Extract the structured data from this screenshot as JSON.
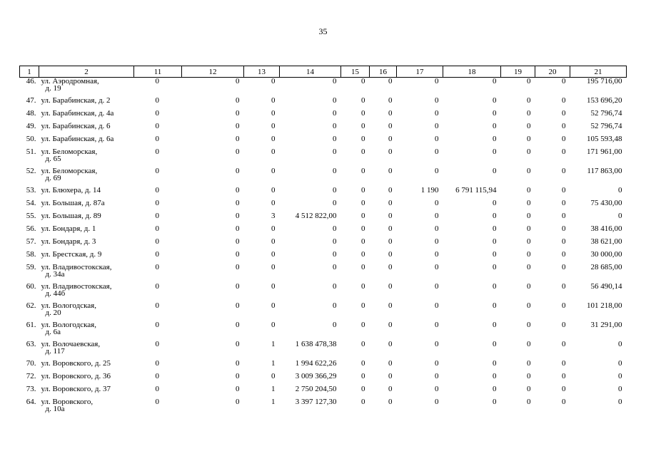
{
  "page_number": "35",
  "headers": [
    "1",
    "2",
    "11",
    "12",
    "13",
    "14",
    "15",
    "16",
    "17",
    "18",
    "19",
    "20",
    "21"
  ],
  "rows": [
    {
      "n": "46.",
      "addr": [
        "ул. Аэродромная,",
        "д. 19"
      ],
      "c11": "0",
      "c12": "0",
      "c13": "0",
      "c14": "0",
      "c15": "0",
      "c16": "0",
      "c17": "0",
      "c18": "0",
      "c19": "0",
      "c20": "0",
      "c21": "195 716,00"
    },
    {
      "n": "47.",
      "addr": [
        "ул. Барабинская, д. 2"
      ],
      "c11": "0",
      "c12": "0",
      "c13": "0",
      "c14": "0",
      "c15": "0",
      "c16": "0",
      "c17": "0",
      "c18": "0",
      "c19": "0",
      "c20": "0",
      "c21": "153 696,20"
    },
    {
      "n": "48.",
      "addr": [
        "ул. Барабинская, д. 4а"
      ],
      "c11": "0",
      "c12": "0",
      "c13": "0",
      "c14": "0",
      "c15": "0",
      "c16": "0",
      "c17": "0",
      "c18": "0",
      "c19": "0",
      "c20": "0",
      "c21": "52 796,74"
    },
    {
      "n": "49.",
      "addr": [
        "ул. Барабинская, д. 6"
      ],
      "c11": "0",
      "c12": "0",
      "c13": "0",
      "c14": "0",
      "c15": "0",
      "c16": "0",
      "c17": "0",
      "c18": "0",
      "c19": "0",
      "c20": "0",
      "c21": "52 796,74"
    },
    {
      "n": "50.",
      "addr": [
        "ул. Барабинская, д. 6а"
      ],
      "c11": "0",
      "c12": "0",
      "c13": "0",
      "c14": "0",
      "c15": "0",
      "c16": "0",
      "c17": "0",
      "c18": "0",
      "c19": "0",
      "c20": "0",
      "c21": "105 593,48"
    },
    {
      "n": "51.",
      "addr": [
        "ул. Беломорская,",
        "д. 65"
      ],
      "c11": "0",
      "c12": "0",
      "c13": "0",
      "c14": "0",
      "c15": "0",
      "c16": "0",
      "c17": "0",
      "c18": "0",
      "c19": "0",
      "c20": "0",
      "c21": "171 961,00"
    },
    {
      "n": "52.",
      "addr": [
        "ул. Беломорская,",
        "д. 69"
      ],
      "c11": "0",
      "c12": "0",
      "c13": "0",
      "c14": "0",
      "c15": "0",
      "c16": "0",
      "c17": "0",
      "c18": "0",
      "c19": "0",
      "c20": "0",
      "c21": "117 863,00"
    },
    {
      "n": "53.",
      "addr": [
        "ул. Блюхера, д. 14"
      ],
      "c11": "0",
      "c12": "0",
      "c13": "0",
      "c14": "0",
      "c15": "0",
      "c16": "0",
      "c17": "1 190",
      "c18": "6 791 115,94",
      "c19": "0",
      "c20": "0",
      "c21": "0"
    },
    {
      "n": "54.",
      "addr": [
        "ул. Большая, д. 87а"
      ],
      "c11": "0",
      "c12": "0",
      "c13": "0",
      "c14": "0",
      "c15": "0",
      "c16": "0",
      "c17": "0",
      "c18": "0",
      "c19": "0",
      "c20": "0",
      "c21": "75 430,00"
    },
    {
      "n": "55.",
      "addr": [
        "ул. Большая, д. 89"
      ],
      "c11": "0",
      "c12": "0",
      "c13": "3",
      "c14": "4 512 822,00",
      "c15": "0",
      "c16": "0",
      "c17": "0",
      "c18": "0",
      "c19": "0",
      "c20": "0",
      "c21": "0"
    },
    {
      "n": "56.",
      "addr": [
        "ул. Бондаря, д. 1"
      ],
      "c11": "0",
      "c12": "0",
      "c13": "0",
      "c14": "0",
      "c15": "0",
      "c16": "0",
      "c17": "0",
      "c18": "0",
      "c19": "0",
      "c20": "0",
      "c21": "38 416,00"
    },
    {
      "n": "57.",
      "addr": [
        "ул. Бондаря, д. 3"
      ],
      "c11": "0",
      "c12": "0",
      "c13": "0",
      "c14": "0",
      "c15": "0",
      "c16": "0",
      "c17": "0",
      "c18": "0",
      "c19": "0",
      "c20": "0",
      "c21": "38 621,00"
    },
    {
      "n": "58.",
      "addr": [
        "ул. Брестская, д. 9"
      ],
      "c11": "0",
      "c12": "0",
      "c13": "0",
      "c14": "0",
      "c15": "0",
      "c16": "0",
      "c17": "0",
      "c18": "0",
      "c19": "0",
      "c20": "0",
      "c21": "30 000,00"
    },
    {
      "n": "59.",
      "addr": [
        "ул. Владивостокская,",
        "д. 34а"
      ],
      "c11": "0",
      "c12": "0",
      "c13": "0",
      "c14": "0",
      "c15": "0",
      "c16": "0",
      "c17": "0",
      "c18": "0",
      "c19": "0",
      "c20": "0",
      "c21": "28 685,00"
    },
    {
      "n": "60.",
      "addr": [
        "ул. Владивостокская,",
        "д. 44б"
      ],
      "c11": "0",
      "c12": "0",
      "c13": "0",
      "c14": "0",
      "c15": "0",
      "c16": "0",
      "c17": "0",
      "c18": "0",
      "c19": "0",
      "c20": "0",
      "c21": "56 490,14"
    },
    {
      "n": "62.",
      "addr": [
        "ул. Вологодская,",
        "д. 20"
      ],
      "c11": "0",
      "c12": "0",
      "c13": "0",
      "c14": "0",
      "c15": "0",
      "c16": "0",
      "c17": "0",
      "c18": "0",
      "c19": "0",
      "c20": "0",
      "c21": "101 218,00"
    },
    {
      "n": "61.",
      "addr": [
        "ул. Вологодская,",
        "д. 6а"
      ],
      "c11": "0",
      "c12": "0",
      "c13": "0",
      "c14": "0",
      "c15": "0",
      "c16": "0",
      "c17": "0",
      "c18": "0",
      "c19": "0",
      "c20": "0",
      "c21": "31 291,00"
    },
    {
      "n": "63.",
      "addr": [
        "ул. Волочаевская,",
        "д. 117"
      ],
      "c11": "0",
      "c12": "0",
      "c13": "1",
      "c14": "1 638 478,38",
      "c15": "0",
      "c16": "0",
      "c17": "0",
      "c18": "0",
      "c19": "0",
      "c20": "0",
      "c21": "0"
    },
    {
      "n": "70.",
      "addr": [
        "ул. Воровского, д. 25"
      ],
      "c11": "0",
      "c12": "0",
      "c13": "1",
      "c14": "1 994 622,26",
      "c15": "0",
      "c16": "0",
      "c17": "0",
      "c18": "0",
      "c19": "0",
      "c20": "0",
      "c21": "0"
    },
    {
      "n": "72.",
      "addr": [
        "ул. Воровского, д. 36"
      ],
      "c11": "0",
      "c12": "0",
      "c13": "0",
      "c14": "3 009 366,29",
      "c15": "0",
      "c16": "0",
      "c17": "0",
      "c18": "0",
      "c19": "0",
      "c20": "0",
      "c21": "0"
    },
    {
      "n": "73.",
      "addr": [
        "ул. Воровского, д. 37"
      ],
      "c11": "0",
      "c12": "0",
      "c13": "1",
      "c14": "2 750 204,50",
      "c15": "0",
      "c16": "0",
      "c17": "0",
      "c18": "0",
      "c19": "0",
      "c20": "0",
      "c21": "0"
    },
    {
      "n": "64.",
      "addr": [
        "ул. Воровского,",
        "д. 10а"
      ],
      "c11": "0",
      "c12": "0",
      "c13": "1",
      "c14": "3 397 127,30",
      "c15": "0",
      "c16": "0",
      "c17": "0",
      "c18": "0",
      "c19": "0",
      "c20": "0",
      "c21": "0"
    }
  ]
}
